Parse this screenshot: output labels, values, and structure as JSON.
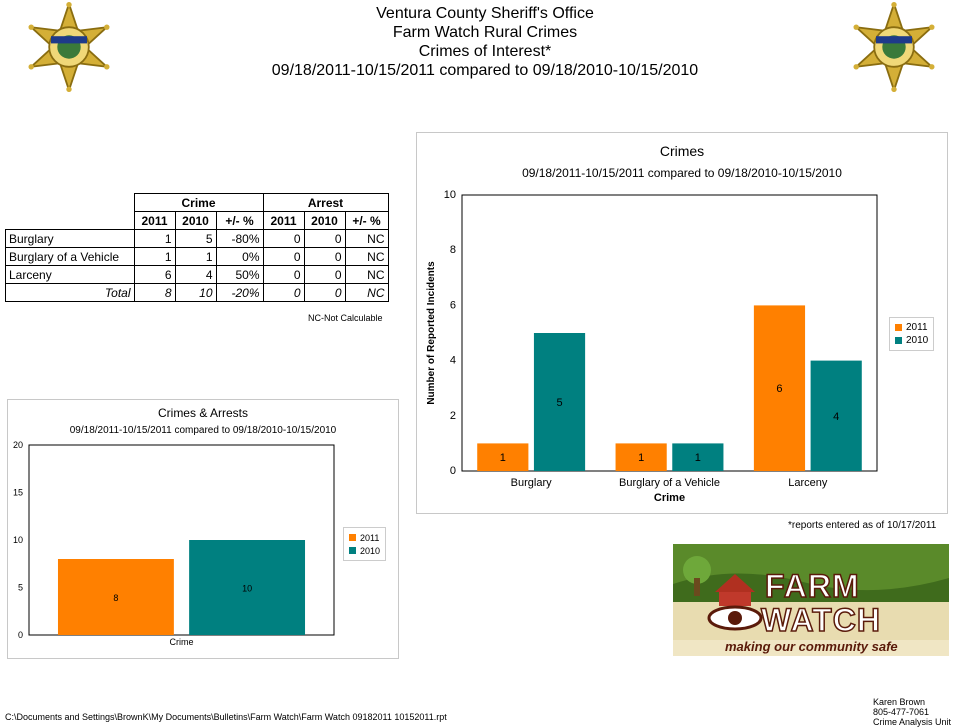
{
  "header": {
    "line1": "Ventura County Sheriff's Office",
    "line2": "Farm Watch Rural Crimes",
    "line3": "Crimes of Interest*",
    "line4": "09/18/2011-10/15/2011 compared to 09/18/2010-10/15/2010"
  },
  "badge": {
    "top_text": "SHERIFF",
    "bottom_text": "VENTURA COUNTY"
  },
  "table": {
    "group_headers": [
      "Crime",
      "Arrest"
    ],
    "sub_headers": [
      "2011",
      "2010",
      "+/- %",
      "2011",
      "2010",
      "+/- %"
    ],
    "rows": [
      {
        "label": "Burglary",
        "cells": [
          "1",
          "5",
          "-80%",
          "0",
          "0",
          "NC"
        ]
      },
      {
        "label": "Burglary of a Vehicle",
        "cells": [
          "1",
          "1",
          "0%",
          "0",
          "0",
          "NC"
        ]
      },
      {
        "label": "Larceny",
        "cells": [
          "6",
          "4",
          "50%",
          "0",
          "0",
          "NC"
        ]
      }
    ],
    "total": {
      "label": "Total",
      "cells": [
        "8",
        "10",
        "-20%",
        "0",
        "0",
        "NC"
      ]
    },
    "note": "NC-Not Calculable"
  },
  "colors": {
    "y2011": "#ff8000",
    "y2010": "#008080"
  },
  "chart_data": [
    {
      "type": "bar",
      "title": "Crimes",
      "subtitle": "09/18/2011-10/15/2011 compared to 09/18/2010-10/15/2010",
      "xlabel": "Crime",
      "ylabel": "Number of Reported Incidents",
      "categories": [
        "Burglary",
        "Burglary of a Vehicle",
        "Larceny"
      ],
      "series": [
        {
          "name": "2011",
          "values": [
            1,
            1,
            6
          ]
        },
        {
          "name": "2010",
          "values": [
            5,
            1,
            4
          ]
        }
      ],
      "ylim": [
        0,
        10
      ],
      "yticks": [
        "0",
        "2",
        "4",
        "6",
        "8",
        "10"
      ],
      "legend": "right"
    },
    {
      "type": "bar",
      "title": "Crimes & Arrests",
      "subtitle": "09/18/2011-10/15/2011 compared to 09/18/2010-10/15/2010",
      "xlabel": "Crime",
      "categories": [
        "Crime"
      ],
      "series": [
        {
          "name": "2011",
          "values": [
            8
          ]
        },
        {
          "name": "2010",
          "values": [
            10
          ]
        }
      ],
      "ylim": [
        0,
        20
      ],
      "yticks": [
        "0",
        "5",
        "10",
        "15",
        "20"
      ],
      "legend": "right"
    }
  ],
  "note_reports": "*reports entered as of 10/17/2011",
  "logo": {
    "line1": "FARM",
    "line2": "WATCH",
    "tagline": "making our community safe"
  },
  "footer": {
    "path": "C:\\Documents and Settings\\BrownK\\My Documents\\Bulletins\\Farm Watch\\Farm Watch 09182011 10152011.rpt",
    "contact_name": "Karen Brown",
    "contact_phone": "805-477-7061",
    "contact_unit": "Crime Analysis Unit"
  }
}
